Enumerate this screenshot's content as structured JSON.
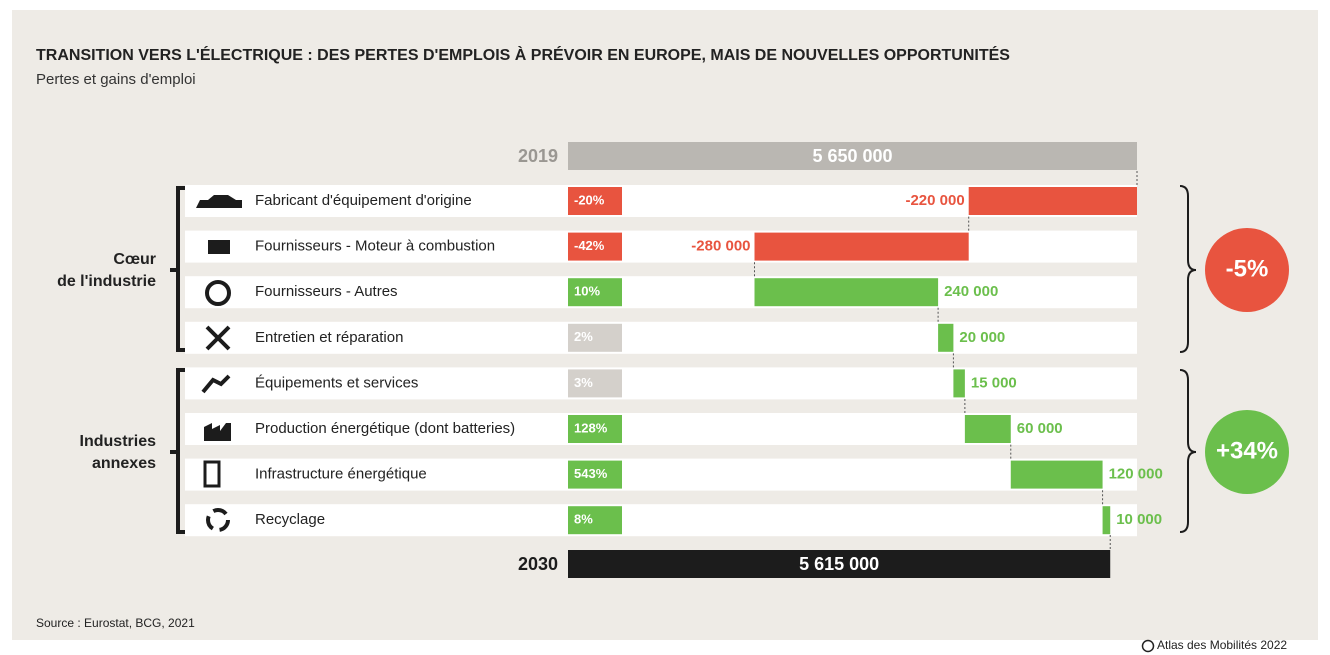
{
  "chart_data": {
    "type": "waterfall",
    "title": "TRANSITION VERS L'ÉLECTRIQUE : DES PERTES D'EMPLOIS À PRÉVOIR EN EUROPE, MAIS DE NOUVELLES OPPORTUNITÉS",
    "subtitle": "Pertes et gains d'emploi",
    "start": {
      "label": "2019",
      "value": 5650000,
      "value_label": "5 650 000",
      "color": "#bab7b2"
    },
    "end": {
      "label": "2030",
      "value": 5615000,
      "value_label": "5 615 000",
      "color": "#1c1c1c"
    },
    "categories": [
      "Fabricant d'équipement d'origine",
      "Fournisseurs - Moteur à combustion",
      "Fournisseurs - Autres",
      "Entretien et réparation",
      "Équipements et services",
      "Production énergétique (dont batteries)",
      "Infrastructure énergétique",
      "Recyclage"
    ],
    "values": [
      -220000,
      -280000,
      240000,
      20000,
      15000,
      60000,
      120000,
      10000
    ],
    "value_labels": [
      "-220 000",
      "-280 000",
      "240 000",
      "20 000",
      "15 000",
      "60 000",
      "120 000",
      "10 000"
    ],
    "percent_labels": [
      "-20%",
      "-42%",
      "10%",
      "2%",
      "3%",
      "128%",
      "543%",
      "8%"
    ],
    "percent_colors": [
      "#e8543f",
      "#e8543f",
      "#6bbf4c",
      "#d4d0cb",
      "#d4d0cb",
      "#6bbf4c",
      "#6bbf4c",
      "#6bbf4c"
    ],
    "colors": {
      "increase": "#6bbf4c",
      "decrease": "#e8543f"
    },
    "groups": [
      {
        "lines": [
          "Cœur",
          "de l'industrie"
        ],
        "total_label": "-5%",
        "color": "#e8543f"
      },
      {
        "lines": [
          "Industries",
          "annexes"
        ],
        "total_label": "+34%",
        "color": "#6bbf4c"
      }
    ],
    "source": "Source : Eurostat, BCG, 2021",
    "credit": "Atlas des Mobilités 2022"
  }
}
